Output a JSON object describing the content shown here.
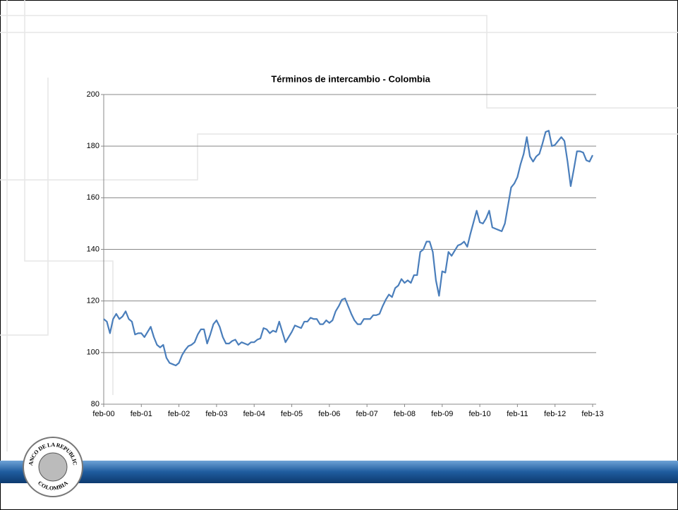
{
  "chart_data": {
    "type": "line",
    "title": "Términos de intercambio - Colombia",
    "categories": [
      "feb-00",
      null,
      null,
      null,
      null,
      null,
      null,
      null,
      null,
      null,
      null,
      null,
      "feb-01",
      null,
      null,
      null,
      null,
      null,
      null,
      null,
      null,
      null,
      null,
      null,
      "feb-02",
      null,
      null,
      null,
      null,
      null,
      null,
      null,
      null,
      null,
      null,
      null,
      "feb-03",
      null,
      null,
      null,
      null,
      null,
      null,
      null,
      null,
      null,
      null,
      null,
      "feb-04",
      null,
      null,
      null,
      null,
      null,
      null,
      null,
      null,
      null,
      null,
      null,
      "feb-05",
      null,
      null,
      null,
      null,
      null,
      null,
      null,
      null,
      null,
      null,
      null,
      "feb-06",
      null,
      null,
      null,
      null,
      null,
      null,
      null,
      null,
      null,
      null,
      null,
      "feb-07",
      null,
      null,
      null,
      null,
      null,
      null,
      null,
      null,
      null,
      null,
      null,
      "feb-08",
      null,
      null,
      null,
      null,
      null,
      null,
      null,
      null,
      null,
      null,
      null,
      "feb-09",
      null,
      null,
      null,
      null,
      null,
      null,
      null,
      null,
      null,
      null,
      null,
      "feb-10",
      null,
      null,
      null,
      null,
      null,
      null,
      null,
      null,
      null,
      null,
      null,
      "feb-11",
      null,
      null,
      null,
      null,
      null,
      null,
      null,
      null,
      null,
      null,
      null,
      "feb-12",
      null,
      null,
      null,
      null,
      null,
      null,
      null,
      null,
      null,
      null,
      null,
      "feb-13"
    ],
    "values": [
      113,
      112,
      107.5,
      113,
      115,
      113,
      114,
      116,
      113,
      112,
      107,
      107.5,
      107.5,
      106,
      108,
      110,
      106,
      103,
      102,
      103,
      98,
      96,
      95.5,
      95,
      96,
      99,
      101,
      102.5,
      103,
      104,
      107,
      109,
      109,
      103.5,
      107,
      111,
      112.5,
      110,
      106,
      103.5,
      103.5,
      104.5,
      105,
      103,
      104,
      103.5,
      103,
      104,
      104,
      105,
      105.5,
      109.5,
      109,
      107.5,
      108.5,
      108,
      112,
      108,
      104,
      106,
      108,
      110.5,
      110,
      109.5,
      112,
      112,
      113.5,
      113,
      113,
      111,
      111,
      112.5,
      111.5,
      112.5,
      116,
      118,
      120.5,
      121,
      118,
      115,
      112.5,
      111,
      111,
      113,
      113,
      113,
      114.5,
      114.5,
      115,
      118,
      120.5,
      122.5,
      121.5,
      125,
      126,
      128.5,
      127,
      128,
      127,
      130,
      130,
      139,
      140,
      143,
      143,
      139,
      128,
      122,
      131.5,
      131,
      139,
      137.5,
      139.5,
      141.5,
      142,
      143,
      141,
      146,
      150.5,
      155,
      150.5,
      150,
      152,
      155,
      148.5,
      148,
      147.5,
      147,
      150,
      157,
      164,
      165.5,
      168,
      173,
      177,
      183.5,
      176,
      174,
      176,
      177,
      181,
      185.5,
      186,
      180,
      180.5,
      182,
      183.5,
      182,
      174,
      164.5,
      171,
      178,
      178,
      177.5,
      174.5,
      174,
      176.5
    ],
    "color": "#4a7ebb",
    "ylim": [
      80,
      200
    ],
    "yticks": [
      80,
      100,
      120,
      140,
      160,
      180,
      200
    ],
    "grid": true
  },
  "logo": {
    "top": "BANCO DE LA REPUBLICA",
    "bottom": "COLOMBIA"
  }
}
